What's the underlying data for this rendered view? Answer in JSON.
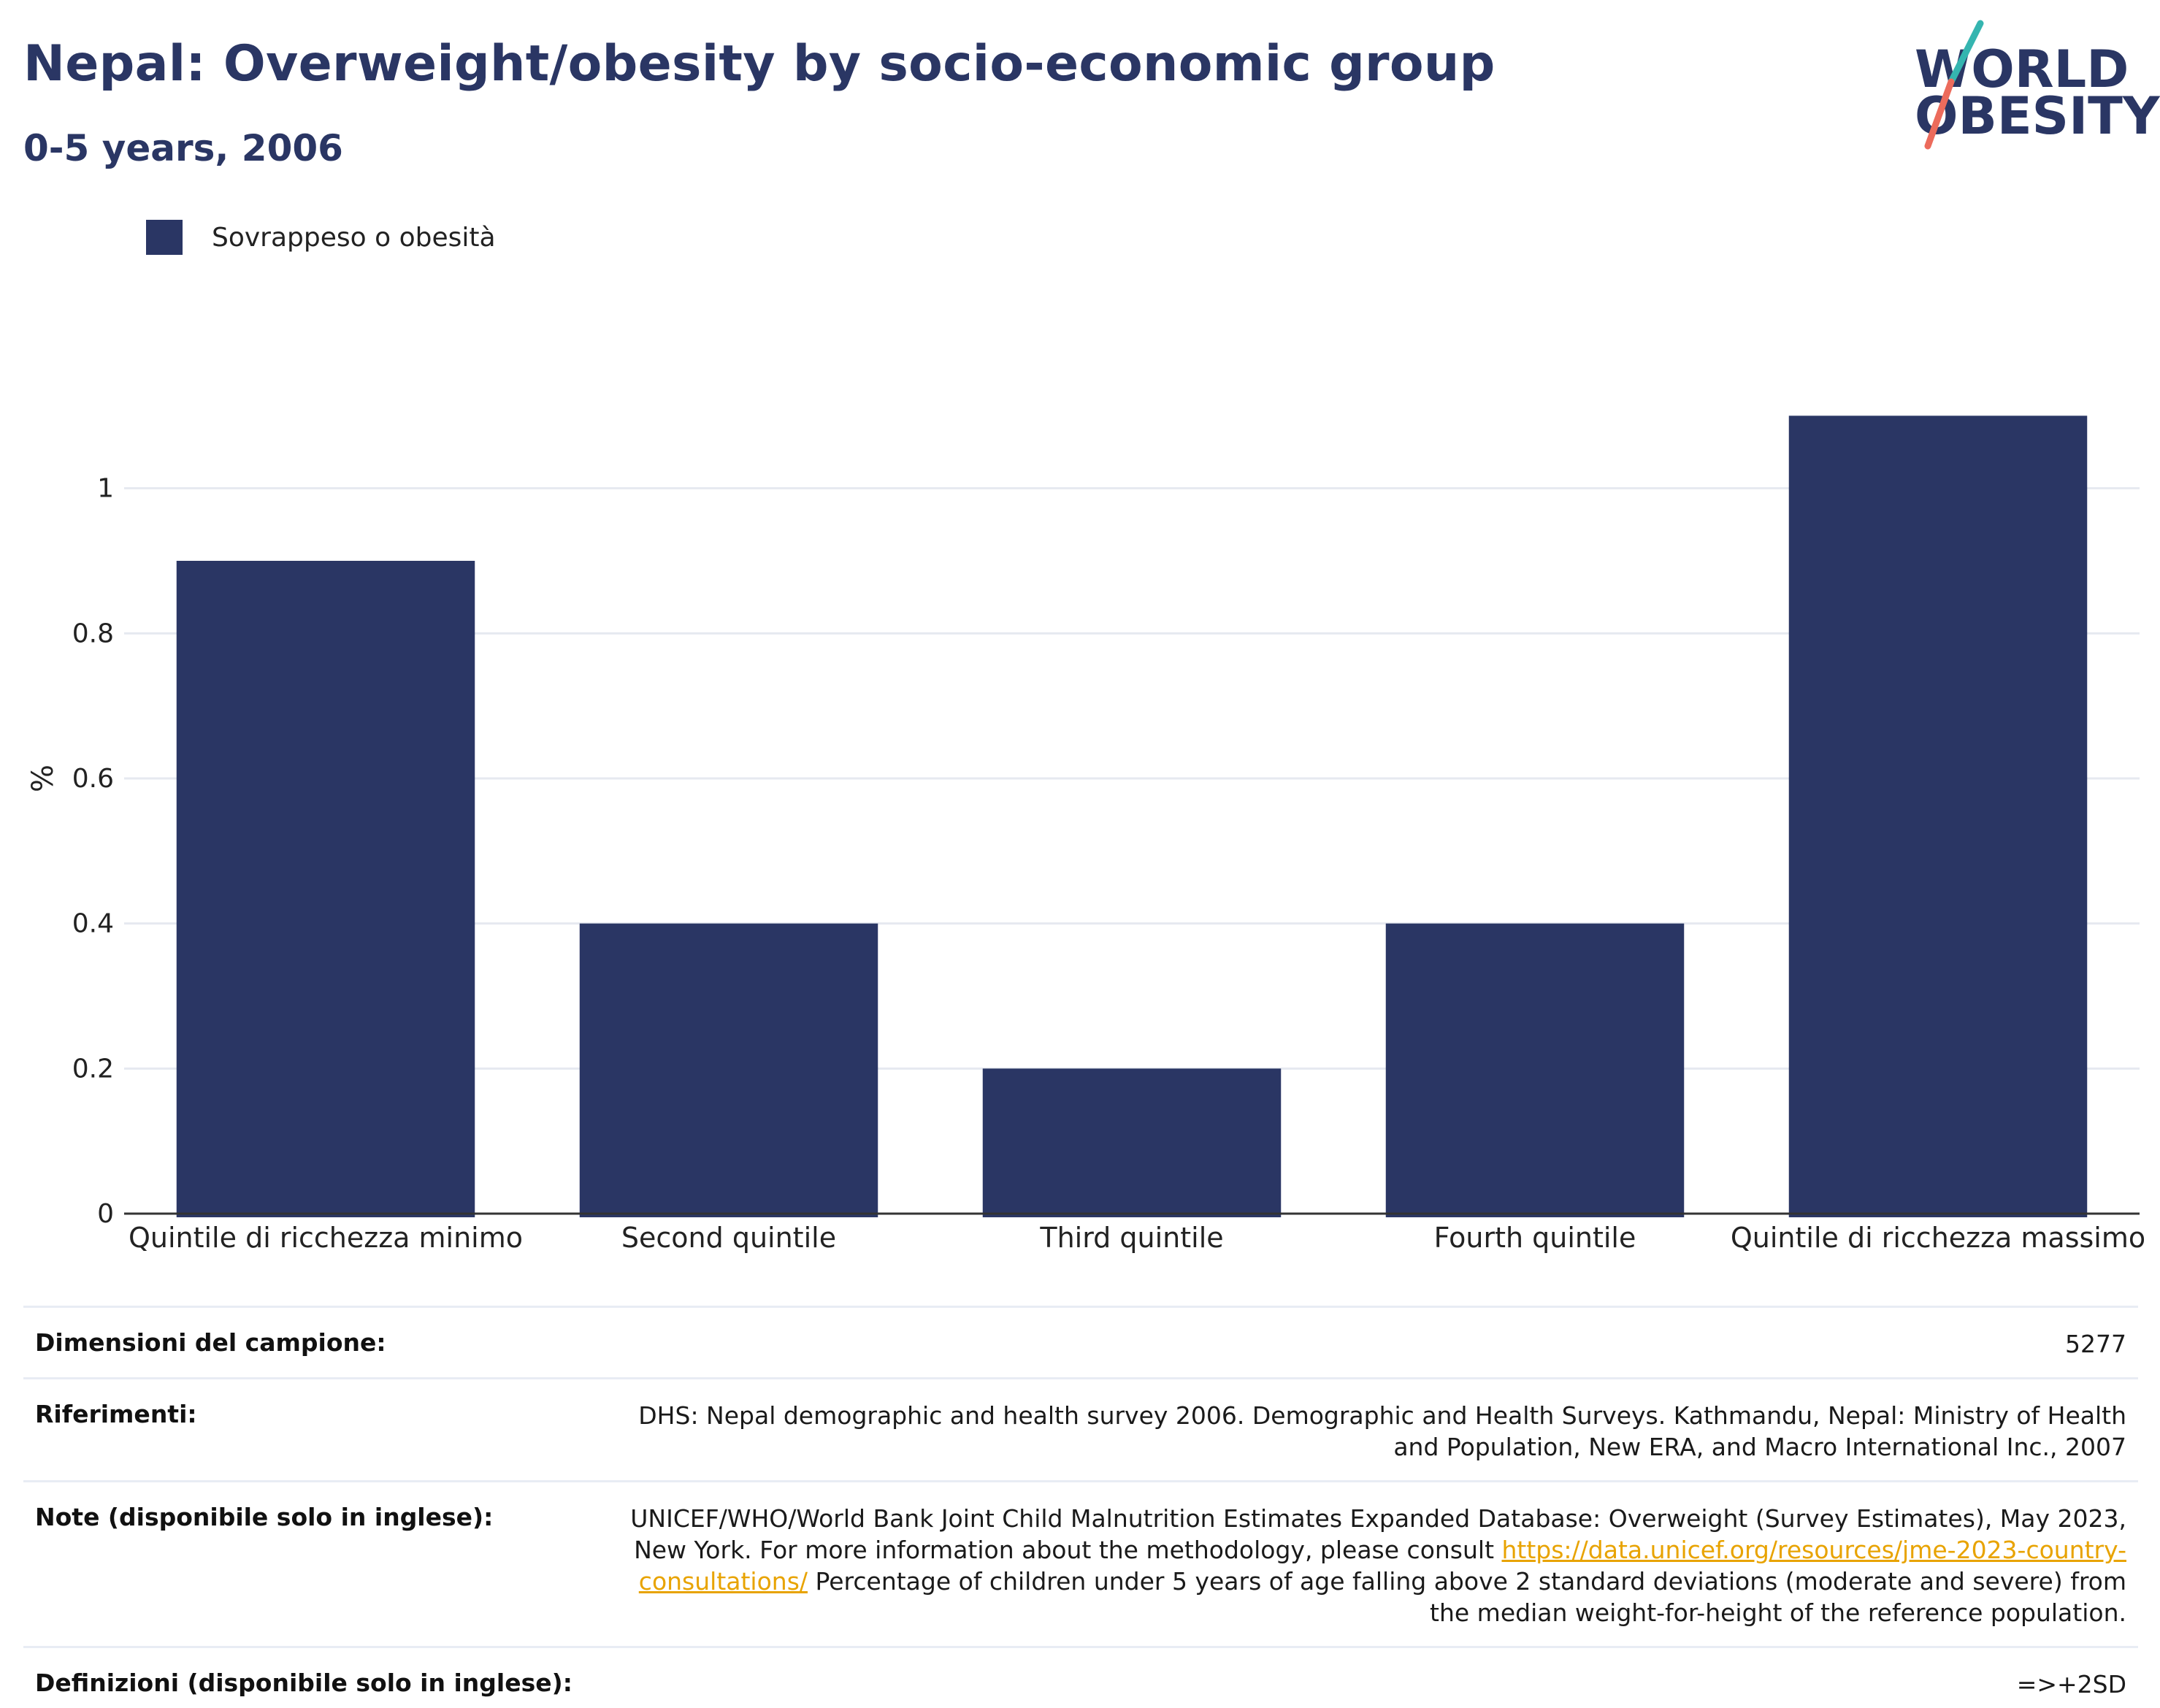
{
  "header": {
    "title": "Nepal: Overweight/obesity by socio-economic group",
    "subtitle": "0-5 years, 2006"
  },
  "logo": {
    "line1": "WORLD",
    "line2": "OBESITY",
    "colors": {
      "text": "#2a3664",
      "slash_top": "#35b5b0",
      "slash_bottom": "#ec6b5c"
    }
  },
  "legend": {
    "label": "Sovrappeso o obesità",
    "color": "#2a3664"
  },
  "chart_data": {
    "type": "bar",
    "categories": [
      "Quintile di ricchezza minimo",
      "Second quintile",
      "Third quintile",
      "Fourth quintile",
      "Quintile di ricchezza massimo"
    ],
    "series": [
      {
        "name": "Sovrappeso o obesità",
        "values": [
          0.9,
          0.4,
          0.2,
          0.4,
          1.1
        ],
        "color": "#2a3664"
      }
    ],
    "ylabel": "%",
    "ylim": [
      0,
      1.2
    ],
    "yticks": [
      0,
      0.2,
      0.4,
      0.6,
      0.8,
      1
    ],
    "ytick_labels": [
      "0",
      "0.2",
      "0.4",
      "0.6",
      "0.8",
      "1"
    ],
    "grid": true
  },
  "footer": {
    "rows": [
      {
        "label": "Dimensioni del campione:",
        "value": "5277"
      },
      {
        "label": "Riferimenti:",
        "value": "DHS: Nepal demographic and health survey 2006. Demographic and Health Surveys. Kathmandu, Nepal: Ministry of Health and Population, New ERA, and Macro International Inc., 2007"
      },
      {
        "label": "Note (disponibile solo in inglese):",
        "value_before": "UNICEF/WHO/World Bank Joint Child Malnutrition Estimates Expanded Database: Overweight (Survey Estimates), May 2023, New York. For more information about the methodology, please consult ",
        "link": "https://data.unicef.org/resources/jme-2023-country-consultations/",
        "value_after": " Percentage of children under 5 years of age falling above 2 standard deviations (moderate and severe) from the median weight-for-height of the reference population."
      },
      {
        "label": "Definizioni (disponibile solo in inglese):",
        "value": "=>+2SD"
      }
    ]
  }
}
